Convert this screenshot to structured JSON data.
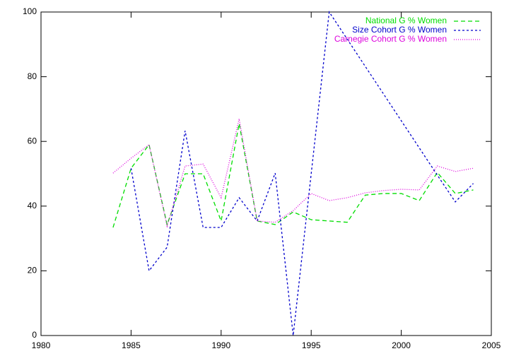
{
  "chart_data": {
    "type": "line",
    "xlim": [
      1980,
      2005
    ],
    "xticks": [
      1980,
      1985,
      1990,
      1995,
      2000,
      2005
    ],
    "ylim": [
      0,
      100
    ],
    "yticks": [
      0,
      20,
      40,
      60,
      80,
      100
    ],
    "legend": "top-right",
    "series": [
      {
        "name": "National G % Women",
        "color": "#00dd00",
        "dash": "6,4",
        "x": [
          1984,
          1985,
          1986,
          1987,
          1988,
          1989,
          1990,
          1991,
          1992,
          1993,
          1994,
          1995,
          1996,
          1997,
          1998,
          1999,
          2000,
          2001,
          2002,
          2003,
          2004
        ],
        "values": [
          33.4,
          51.7,
          59,
          34.3,
          50,
          50,
          35.4,
          65.5,
          35.4,
          34.3,
          38.2,
          35.8,
          35.4,
          35,
          43.4,
          43.9,
          43.9,
          41.7,
          50.4,
          43.9,
          45
        ]
      },
      {
        "name": "Size Cohort G % Women",
        "color": "#0000cc",
        "dash": "3,3",
        "x": [
          1985,
          1986,
          1987,
          1988,
          1989,
          1990,
          1991,
          1992,
          1993,
          1994,
          1996,
          2002,
          2003,
          2004
        ],
        "values": [
          51.7,
          20,
          27.3,
          63.3,
          33.4,
          33.4,
          42.6,
          35.4,
          50.2,
          0,
          100,
          49.6,
          41.3,
          47
        ]
      },
      {
        "name": "Carnegie Cohort G % Women",
        "color": "#dd00dd",
        "dash": "1,2",
        "x": [
          1984,
          1985,
          1986,
          1987,
          1988,
          1989,
          1990,
          1991,
          1992,
          1993,
          1994,
          1995,
          1996,
          1997,
          1998,
          1999,
          2000,
          2001,
          2002,
          2003,
          2004
        ],
        "values": [
          50.2,
          54.8,
          59,
          33.8,
          52.4,
          53,
          42.6,
          67,
          35.4,
          35,
          38.6,
          43.9,
          41.7,
          42.6,
          44.1,
          44.8,
          45.2,
          45,
          52.4,
          50.7,
          51.7
        ]
      }
    ]
  }
}
